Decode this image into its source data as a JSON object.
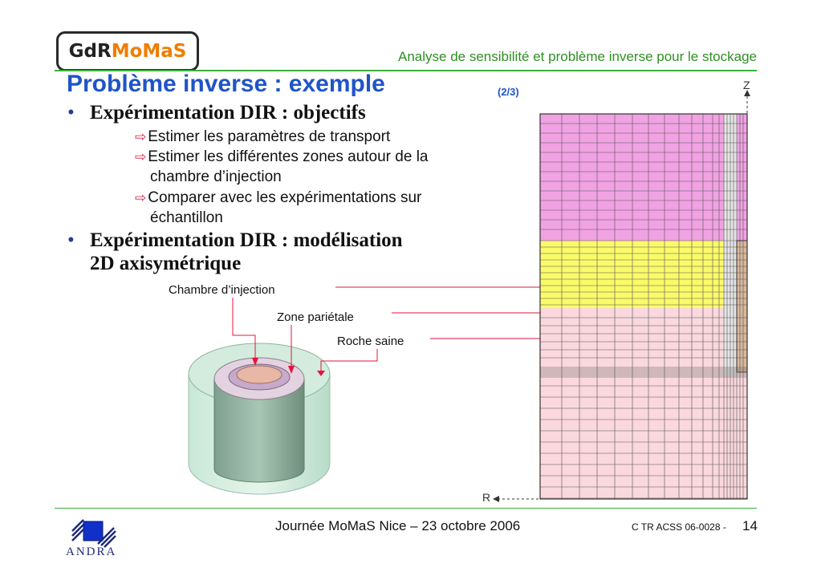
{
  "header": {
    "logo_part1": "GdR",
    "logo_part2": "MoMaS",
    "title": "Analyse de sensibilité et problème inverse pour le stockage"
  },
  "slide": {
    "title": "Problème inverse : exemple",
    "part": "(2/3)",
    "bullets": [
      {
        "text": "Expérimentation DIR : objectifs",
        "subitems": [
          {
            "line1": "Estimer les paramètres de transport"
          },
          {
            "line1": "Estimer les différentes zones autour de la",
            "line2": "chambre d’injection"
          },
          {
            "line1": "Comparer avec les expérimentations sur",
            "line2": "échantillon"
          }
        ]
      },
      {
        "line1": "Expérimentation DIR : modélisation",
        "line2": "2D axisymétrique"
      }
    ]
  },
  "figure": {
    "labels": {
      "chamber": "Chambre d’injection",
      "parietal": "Zone pariétale",
      "rock": "Roche saine"
    },
    "axis_z": "Z",
    "axis_r": "R",
    "colors": {
      "pink_zone": "#f1a2e3",
      "yellow_zone": "#fbfa6a",
      "healthy_rock": "#fad8dd",
      "chamber": "#d8b79a",
      "cylinder": "#b8dcc8",
      "arrows": "#e3143c"
    }
  },
  "footer": {
    "center": "Journée MoMaS Nice – 23 octobre 2006",
    "ref": "C TR ACSS 06-0028 -",
    "page": "14",
    "org": "ANDRA"
  }
}
